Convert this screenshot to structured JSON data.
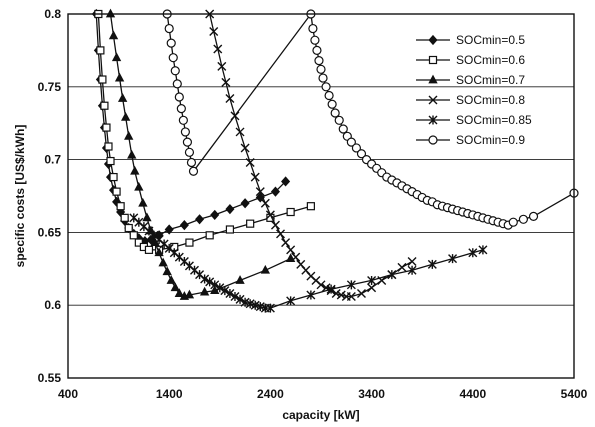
{
  "chart_data": {
    "type": "line",
    "xlabel": "capacity [kW]",
    "ylabel": "specific costs [US$/kWh]",
    "xlim": [
      400,
      5400
    ],
    "ylim": [
      0.55,
      0.8
    ],
    "x_ticks": [
      "400",
      "1400",
      "2400",
      "3400",
      "4400",
      "5400"
    ],
    "y_ticks": [
      "0.55",
      "0.6",
      "0.65",
      "0.7",
      "0.75",
      "0.8"
    ],
    "grid": true,
    "legend_position": "top-right",
    "series": [
      {
        "name": "SOCmin=0.5",
        "marker": "diamond-filled",
        "color": "#111111",
        "x": [
          680,
          700,
          720,
          740,
          760,
          780,
          800,
          820,
          850,
          880,
          920,
          960,
          1000,
          1050,
          1100,
          1160,
          1220,
          1300,
          1400,
          1550,
          1700,
          1850,
          2000,
          2150,
          2300,
          2450,
          2550
        ],
        "y": [
          0.8,
          0.775,
          0.755,
          0.737,
          0.722,
          0.708,
          0.697,
          0.688,
          0.679,
          0.671,
          0.664,
          0.658,
          0.653,
          0.649,
          0.646,
          0.644,
          0.645,
          0.648,
          0.652,
          0.655,
          0.659,
          0.662,
          0.666,
          0.67,
          0.674,
          0.678,
          0.685
        ]
      },
      {
        "name": "SOCmin=0.6",
        "marker": "square-open",
        "color": "#111111",
        "x": [
          700,
          720,
          740,
          760,
          780,
          800,
          820,
          850,
          880,
          920,
          960,
          1000,
          1050,
          1100,
          1150,
          1200,
          1300,
          1450,
          1600,
          1800,
          2000,
          2200,
          2400,
          2600,
          2800
        ],
        "y": [
          0.8,
          0.775,
          0.755,
          0.737,
          0.722,
          0.709,
          0.699,
          0.688,
          0.678,
          0.668,
          0.66,
          0.653,
          0.648,
          0.643,
          0.64,
          0.638,
          0.638,
          0.64,
          0.643,
          0.648,
          0.652,
          0.656,
          0.66,
          0.664,
          0.668
        ]
      },
      {
        "name": "SOCmin=0.7",
        "marker": "triangle-filled",
        "color": "#111111",
        "x": [
          820,
          850,
          880,
          910,
          940,
          970,
          1000,
          1030,
          1060,
          1100,
          1140,
          1180,
          1220,
          1260,
          1300,
          1340,
          1380,
          1420,
          1460,
          1500,
          1550,
          1600,
          1750,
          1850,
          2100,
          2350,
          2600
        ],
        "y": [
          0.8,
          0.785,
          0.77,
          0.756,
          0.742,
          0.729,
          0.716,
          0.703,
          0.692,
          0.681,
          0.67,
          0.66,
          0.651,
          0.643,
          0.636,
          0.629,
          0.623,
          0.617,
          0.612,
          0.608,
          0.606,
          0.607,
          0.609,
          0.61,
          0.617,
          0.624,
          0.632
        ]
      },
      {
        "name": "SOCmin=0.8",
        "marker": "x",
        "color": "#111111",
        "x": [
          1800,
          1840,
          1880,
          1920,
          1960,
          2000,
          2050,
          2100,
          2150,
          2200,
          2250,
          2300,
          2350,
          2400,
          2450,
          2500,
          2550,
          2600,
          2650,
          2700,
          2750,
          2800,
          2850,
          2900,
          2950,
          3000,
          3050,
          3100,
          3150,
          3200,
          3300,
          3400,
          3500,
          3600,
          3700,
          3800
        ],
        "y": [
          0.8,
          0.788,
          0.776,
          0.764,
          0.753,
          0.742,
          0.73,
          0.719,
          0.708,
          0.698,
          0.688,
          0.678,
          0.67,
          0.662,
          0.655,
          0.649,
          0.643,
          0.638,
          0.633,
          0.628,
          0.624,
          0.62,
          0.617,
          0.614,
          0.612,
          0.61,
          0.608,
          0.607,
          0.606,
          0.606,
          0.608,
          0.612,
          0.617,
          0.621,
          0.626,
          0.63
        ]
      },
      {
        "name": "SOCmin=0.85",
        "marker": "asterisk",
        "color": "#111111",
        "x": [
          1050,
          1100,
          1150,
          1200,
          1250,
          1300,
          1350,
          1400,
          1450,
          1500,
          1550,
          1600,
          1650,
          1700,
          1750,
          1800,
          1850,
          1900,
          1950,
          2000,
          2050,
          2100,
          2150,
          2200,
          2250,
          2300,
          2350,
          2400,
          2600,
          2800,
          3000,
          3200,
          3400,
          3600,
          3800,
          4000,
          4200,
          4400,
          4500
        ],
        "y": [
          0.66,
          0.657,
          0.654,
          0.651,
          0.648,
          0.645,
          0.642,
          0.639,
          0.636,
          0.633,
          0.63,
          0.627,
          0.624,
          0.621,
          0.618,
          0.616,
          0.614,
          0.612,
          0.61,
          0.608,
          0.606,
          0.604,
          0.602,
          0.601,
          0.6,
          0.599,
          0.598,
          0.598,
          0.603,
          0.607,
          0.611,
          0.614,
          0.617,
          0.621,
          0.624,
          0.628,
          0.632,
          0.636,
          0.638
        ]
      },
      {
        "name": "SOCmin=0.9",
        "marker": "circle-open",
        "color": "#111111",
        "x": [
          1380,
          1400,
          1420,
          1440,
          1460,
          1480,
          1500,
          1520,
          1540,
          1560,
          1580,
          1600,
          1620,
          1640,
          2800,
          2820,
          2840,
          2860,
          2880,
          2900,
          2920,
          2950,
          2980,
          3010,
          3040,
          3080,
          3120,
          3160,
          3200,
          3250,
          3300,
          3350,
          3400,
          3450,
          3500,
          3550,
          3600,
          3650,
          3700,
          3750,
          3800,
          3850,
          3900,
          3950,
          4000,
          4050,
          4100,
          4150,
          4200,
          4250,
          4300,
          4350,
          4400,
          4450,
          4500,
          4550,
          4600,
          4650,
          4700,
          4750,
          4800,
          4900,
          5000,
          5400
        ],
        "y": [
          0.8,
          0.79,
          0.78,
          0.77,
          0.761,
          0.752,
          0.743,
          0.735,
          0.727,
          0.719,
          0.712,
          0.705,
          0.698,
          0.692,
          0.8,
          0.79,
          0.782,
          0.775,
          0.768,
          0.762,
          0.756,
          0.75,
          0.744,
          0.738,
          0.732,
          0.727,
          0.721,
          0.716,
          0.712,
          0.708,
          0.704,
          0.7,
          0.697,
          0.694,
          0.691,
          0.688,
          0.686,
          0.684,
          0.682,
          0.68,
          0.678,
          0.676,
          0.674,
          0.672,
          0.671,
          0.669,
          0.668,
          0.667,
          0.666,
          0.665,
          0.664,
          0.663,
          0.662,
          0.661,
          0.66,
          0.659,
          0.658,
          0.657,
          0.656,
          0.655,
          0.657,
          0.659,
          0.661,
          0.677
        ]
      }
    ]
  }
}
